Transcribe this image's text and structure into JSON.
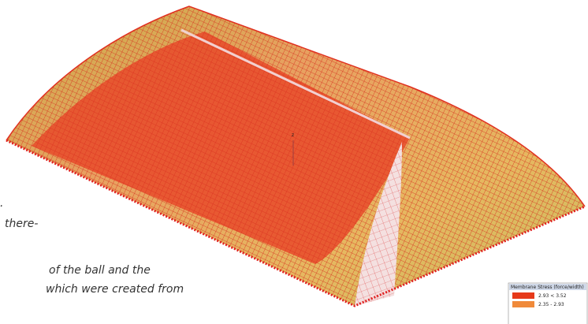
{
  "body_text": {
    "lines": [
      "there-",
      "of the ball and the",
      "which were created from"
    ]
  },
  "figure": {
    "axis_label": "z",
    "legend": {
      "title": "Membrane Stress (force/width)",
      "rows": [
        "2.93 < 3.52",
        "2.35 - 2.93"
      ]
    }
  }
}
